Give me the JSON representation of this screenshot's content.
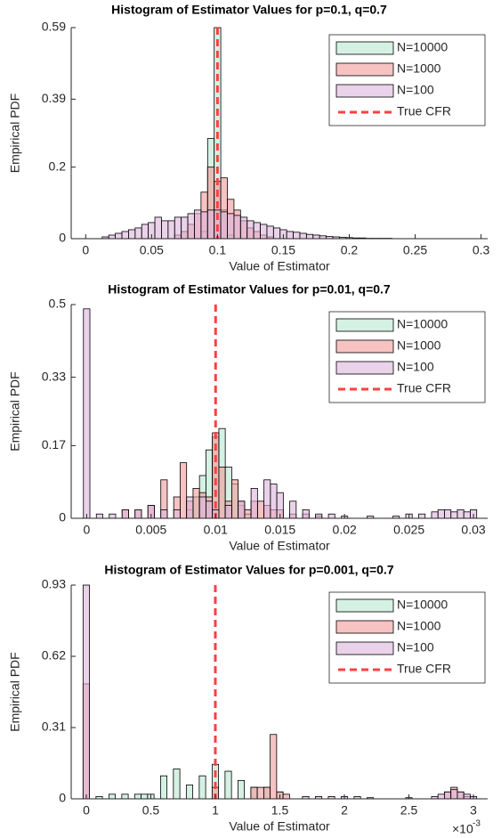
{
  "chart_data": [
    {
      "type": "histogram",
      "title": "Histogram of Estimator Values for p=0.1, q=0.7",
      "xlabel": "Value of Estimator",
      "ylabel": "Empirical PDF",
      "xlim": [
        -0.011,
        0.305
      ],
      "ylim": [
        0,
        0.59
      ],
      "xticks": [
        0,
        0.05,
        0.1,
        0.15,
        0.2,
        0.25,
        0.3
      ],
      "yticks": [
        0,
        0.2,
        0.39,
        0.59
      ],
      "bins": [
        -0.0025,
        0.0025,
        0.0075,
        0.0125,
        0.0175,
        0.0225,
        0.0275,
        0.0325,
        0.0375,
        0.0425,
        0.0475,
        0.0525,
        0.0575,
        0.0625,
        0.0675,
        0.0725,
        0.0775,
        0.0825,
        0.0875,
        0.0925,
        0.0975,
        0.1025,
        0.1075,
        0.1125,
        0.1175,
        0.1225,
        0.1275,
        0.1325,
        0.1375,
        0.1425,
        0.1475,
        0.1525,
        0.1575,
        0.1625,
        0.1675,
        0.1725,
        0.1775,
        0.1825,
        0.1875,
        0.1925,
        0.1975,
        0.2025,
        0.2075,
        0.2125,
        0.2175,
        0.2225,
        0.2275,
        0.2325,
        0.2375,
        0.2425,
        0.2475,
        0.2525,
        0.2575,
        0.2625,
        0.2675,
        0.2725,
        0.2775,
        0.2825,
        0.2875,
        0.2925,
        0.2975,
        0.3025
      ],
      "series": [
        {
          "name": "N=10000",
          "color": "#b8e8d2",
          "values": [
            0,
            0,
            0,
            0,
            0,
            0,
            0,
            0,
            0,
            0,
            0,
            0,
            0,
            0,
            0,
            0,
            0,
            0,
            0.02,
            0.28,
            0.59,
            0.08,
            0.01,
            0,
            0,
            0,
            0,
            0,
            0,
            0,
            0,
            0,
            0,
            0,
            0,
            0,
            0,
            0,
            0,
            0,
            0,
            0,
            0,
            0,
            0,
            0,
            0,
            0,
            0,
            0,
            0,
            0,
            0,
            0,
            0,
            0,
            0,
            0,
            0,
            0,
            0
          ]
        },
        {
          "name": "N=1000",
          "color": "#f29a9a",
          "values": [
            0,
            0,
            0,
            0,
            0,
            0,
            0,
            0,
            0,
            0,
            0,
            0,
            0,
            0,
            0.01,
            0.02,
            0.04,
            0.07,
            0.13,
            0.2,
            0.16,
            0.17,
            0.11,
            0.08,
            0.05,
            0.03,
            0.02,
            0.01,
            0.005,
            0,
            0,
            0,
            0,
            0,
            0,
            0,
            0,
            0,
            0,
            0,
            0,
            0,
            0,
            0,
            0,
            0,
            0,
            0,
            0,
            0,
            0,
            0,
            0,
            0,
            0,
            0,
            0,
            0,
            0,
            0,
            0
          ]
        },
        {
          "name": "N=100",
          "color": "#dcb4dc",
          "values": [
            0,
            0,
            0,
            0.005,
            0.01,
            0.015,
            0.02,
            0.025,
            0.03,
            0.04,
            0.045,
            0.06,
            0.05,
            0.05,
            0.06,
            0.06,
            0.07,
            0.08,
            0.075,
            0.08,
            0.08,
            0.075,
            0.07,
            0.065,
            0.06,
            0.05,
            0.045,
            0.04,
            0.035,
            0.03,
            0.025,
            0.02,
            0.018,
            0.015,
            0.012,
            0.01,
            0.008,
            0.006,
            0.005,
            0.004,
            0.003,
            0.002,
            0.002,
            0.001,
            0.001,
            0.001,
            0.001,
            0,
            0,
            0,
            0,
            0,
            0,
            0,
            0,
            0,
            0,
            0,
            0,
            0,
            0
          ]
        },
        {
          "name": "True CFR",
          "color": "#ff4040",
          "x": 0.1
        }
      ]
    },
    {
      "type": "histogram",
      "title": "Histogram of Estimator Values for p=0.01, q=0.7",
      "xlabel": "Value of Estimator",
      "ylabel": "Empirical PDF",
      "xlim": [
        -0.0012,
        0.0311
      ],
      "ylim": [
        0,
        0.5
      ],
      "xticks": [
        0,
        0.005,
        0.01,
        0.015,
        0.02,
        0.025,
        0.03
      ],
      "yticks": [
        0,
        0.17,
        0.33,
        0.5
      ],
      "bins": [
        -0.00025,
        0.00025,
        0.00075,
        0.00125,
        0.00175,
        0.00225,
        0.00275,
        0.00325,
        0.00375,
        0.00425,
        0.00475,
        0.00525,
        0.00575,
        0.00625,
        0.00675,
        0.00725,
        0.00775,
        0.00825,
        0.00875,
        0.00925,
        0.00975,
        0.01025,
        0.01075,
        0.01125,
        0.01175,
        0.01225,
        0.01275,
        0.01325,
        0.01375,
        0.01425,
        0.01475,
        0.01525,
        0.01575,
        0.01625,
        0.01675,
        0.01725,
        0.01775,
        0.01825,
        0.01875,
        0.01925,
        0.01975,
        0.02025,
        0.02075,
        0.02125,
        0.02175,
        0.02225,
        0.02275,
        0.02325,
        0.02375,
        0.02425,
        0.02475,
        0.02525,
        0.02575,
        0.02625,
        0.02675,
        0.02725,
        0.02775,
        0.02825,
        0.02875,
        0.02925,
        0.02975,
        0.03025
      ],
      "series": [
        {
          "name": "N=10000",
          "color": "#b8e8d2",
          "values": [
            0,
            0,
            0,
            0,
            0,
            0,
            0,
            0,
            0,
            0,
            0,
            0,
            0,
            0,
            0,
            0,
            0.02,
            0.05,
            0.1,
            0.16,
            0.19,
            0.21,
            0.12,
            0.08,
            0.03,
            0.01,
            0,
            0,
            0,
            0,
            0,
            0,
            0,
            0,
            0,
            0,
            0,
            0,
            0,
            0,
            0,
            0,
            0,
            0,
            0,
            0,
            0,
            0,
            0,
            0,
            0,
            0,
            0,
            0,
            0,
            0,
            0,
            0,
            0,
            0,
            0
          ]
        },
        {
          "name": "N=1000",
          "color": "#f29a9a",
          "values": [
            0,
            0,
            0,
            0,
            0,
            0,
            0.02,
            0,
            0.02,
            0,
            0.03,
            0,
            0.09,
            0,
            0.05,
            0.13,
            0.04,
            0.07,
            0.06,
            0.05,
            0.2,
            0.12,
            0.04,
            0.09,
            0.04,
            0.02,
            0.04,
            0.04,
            0.03,
            0.02,
            0.02,
            0,
            0.01,
            0,
            0.01,
            0,
            0.005,
            0,
            0,
            0,
            0,
            0,
            0,
            0,
            0,
            0,
            0,
            0,
            0,
            0,
            0,
            0,
            0,
            0,
            0,
            0,
            0,
            0,
            0,
            0,
            0
          ]
        },
        {
          "name": "N=100",
          "color": "#dcb4dc",
          "values": [
            0.49,
            0,
            0.01,
            0,
            0.01,
            0,
            0.02,
            0,
            0.02,
            0,
            0.03,
            0,
            0.02,
            0,
            0.02,
            0,
            0.05,
            0,
            0.05,
            0.04,
            0.02,
            0,
            0.03,
            0,
            0.04,
            0,
            0.07,
            0,
            0.09,
            0.08,
            0.06,
            0,
            0.04,
            0,
            0.02,
            0,
            0.01,
            0,
            0.01,
            0,
            0.005,
            0,
            0,
            0,
            0.005,
            0,
            0,
            0,
            0.005,
            0,
            0.01,
            0,
            0.01,
            0,
            0.015,
            0.02,
            0.02,
            0.015,
            0.02,
            0.015,
            0.02
          ]
        },
        {
          "name": "True CFR",
          "color": "#ff4040",
          "x": 0.01
        }
      ]
    },
    {
      "type": "histogram",
      "title": "Histogram of Estimator Values for p=0.001, q=0.7",
      "xlabel": "Value of Estimator",
      "ylabel": "Empirical PDF",
      "x_multiplier": "×10",
      "x_multiplier_exponent": "-3",
      "xlim": [
        -0.000117,
        0.00311
      ],
      "ylim": [
        0,
        0.93
      ],
      "xticks": [
        0,
        {
          "value": 0.0005,
          "label": "0.5"
        },
        {
          "value": 0.001,
          "label": "1"
        },
        {
          "value": 0.0015,
          "label": "1.5"
        },
        {
          "value": 0.002,
          "label": "2"
        },
        {
          "value": 0.0025,
          "label": "2.5"
        },
        {
          "value": 0.003,
          "label": "3"
        }
      ],
      "yticks": [
        0,
        0.31,
        0.62,
        0.93
      ],
      "bins": [
        -2.5e-05,
        2.5e-05,
        7.5e-05,
        0.000125,
        0.000175,
        0.000225,
        0.000275,
        0.000325,
        0.000375,
        0.000425,
        0.000475,
        0.000525,
        0.000575,
        0.000625,
        0.000675,
        0.000725,
        0.000775,
        0.000825,
        0.000875,
        0.000925,
        0.000975,
        0.001025,
        0.001075,
        0.001125,
        0.001175,
        0.001225,
        0.001275,
        0.001325,
        0.001375,
        0.001425,
        0.001475,
        0.001525,
        0.001575,
        0.001625,
        0.001675,
        0.001725,
        0.001775,
        0.001825,
        0.001875,
        0.001925,
        0.001975,
        0.002025,
        0.002075,
        0.002125,
        0.002175,
        0.002225,
        0.002275,
        0.002325,
        0.002375,
        0.002425,
        0.002475,
        0.002525,
        0.002575,
        0.002625,
        0.002675,
        0.002725,
        0.002775,
        0.002825,
        0.002875,
        0.002925,
        0.002975,
        0.003025
      ],
      "series": [
        {
          "name": "N=10000",
          "color": "#b8e8d2",
          "values": [
            0,
            0,
            0.01,
            0,
            0.02,
            0,
            0.02,
            0,
            0.02,
            0.02,
            0.02,
            0,
            0.1,
            0,
            0.13,
            0,
            0.06,
            0,
            0.1,
            0,
            0.15,
            0,
            0.12,
            0,
            0.08,
            0,
            0.05,
            0,
            0.05,
            0,
            0.03,
            0,
            0,
            0,
            0,
            0,
            0,
            0,
            0,
            0,
            0,
            0,
            0,
            0,
            0,
            0,
            0,
            0,
            0,
            0,
            0,
            0,
            0,
            0,
            0,
            0,
            0,
            0,
            0,
            0,
            0
          ]
        },
        {
          "name": "N=1000",
          "color": "#f29a9a",
          "values": [
            0.5,
            0,
            0,
            0,
            0,
            0,
            0,
            0,
            0,
            0,
            0,
            0,
            0,
            0,
            0,
            0,
            0,
            0,
            0,
            0,
            0.05,
            0,
            0,
            0,
            0,
            0,
            0.05,
            0.05,
            0.05,
            0.28,
            0.03,
            0.02,
            0,
            0,
            0,
            0,
            0,
            0,
            0,
            0,
            0,
            0,
            0,
            0,
            0,
            0,
            0,
            0,
            0,
            0,
            0,
            0,
            0,
            0,
            0,
            0,
            0.03,
            0.05,
            0.03,
            0.01,
            0
          ]
        },
        {
          "name": "N=100",
          "color": "#dcb4dc",
          "values": [
            0.93,
            0,
            0,
            0,
            0,
            0,
            0,
            0,
            0,
            0,
            0,
            0,
            0,
            0,
            0,
            0,
            0,
            0,
            0,
            0,
            0,
            0,
            0,
            0,
            0,
            0,
            0,
            0,
            0,
            0,
            0,
            0,
            0,
            0,
            0.01,
            0,
            0.01,
            0,
            0.01,
            0,
            0.01,
            0,
            0.01,
            0,
            0.005,
            0,
            0,
            0,
            0,
            0,
            0.005,
            0,
            0,
            0,
            0.01,
            0.02,
            0.03,
            0.04,
            0.03,
            0.02,
            0.01
          ]
        },
        {
          "name": "True CFR",
          "color": "#ff4040",
          "x": 0.001
        }
      ]
    }
  ]
}
